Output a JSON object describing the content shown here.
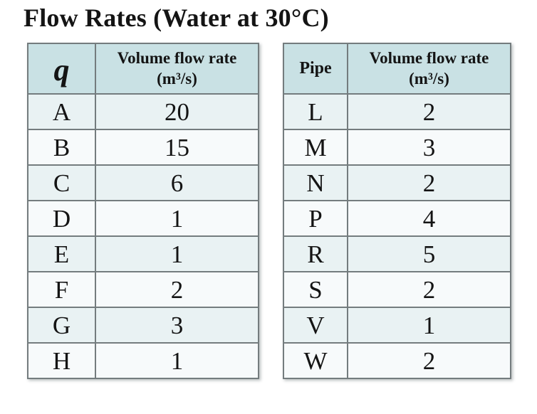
{
  "title": "Flow Rates (Water at 30°C)",
  "colors": {
    "header_bg": "#c9e1e4",
    "row_odd_bg": "#e9f2f3",
    "row_even_bg": "#f7fafb",
    "border": "#747c7e",
    "outer_border": "#6b7173",
    "text": "#141414",
    "page_bg": "#ffffff"
  },
  "tables": [
    {
      "name": "flow-rates-by-q",
      "col1_header": "q",
      "col2_header": "Volume flow rate\n(m³/s)",
      "rows": [
        {
          "label": "A",
          "value": "20"
        },
        {
          "label": "B",
          "value": "15"
        },
        {
          "label": "C",
          "value": "6"
        },
        {
          "label": "D",
          "value": "1"
        },
        {
          "label": "E",
          "value": "1"
        },
        {
          "label": "F",
          "value": "2"
        },
        {
          "label": "G",
          "value": "3"
        },
        {
          "label": "H",
          "value": "1"
        }
      ]
    },
    {
      "name": "flow-rates-by-pipe",
      "col1_header": "Pipe",
      "col2_header": "Volume flow rate\n(m³/s)",
      "rows": [
        {
          "label": "L",
          "value": "2"
        },
        {
          "label": "M",
          "value": "3"
        },
        {
          "label": "N",
          "value": "2"
        },
        {
          "label": "P",
          "value": "4"
        },
        {
          "label": "R",
          "value": "5"
        },
        {
          "label": "S",
          "value": "2"
        },
        {
          "label": "V",
          "value": "1"
        },
        {
          "label": "W",
          "value": "2"
        }
      ]
    }
  ]
}
